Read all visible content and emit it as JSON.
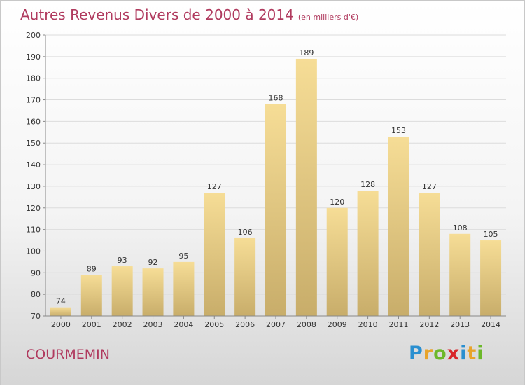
{
  "header": {
    "title": "Autres Revenus Divers de 2000 à 2014",
    "unit": "(en milliers d'€)"
  },
  "commune": "COURMEMIN",
  "logo": {
    "letters": [
      "P",
      "r",
      "o",
      "x",
      "i",
      "t",
      "i"
    ],
    "colors": [
      "#2a8fd0",
      "#e8a42a",
      "#6cb82a",
      "#d8262a",
      "#2a8fd0",
      "#e8a42a",
      "#6cb82a"
    ]
  },
  "chart_data": {
    "type": "bar",
    "title": "Autres Revenus Divers de 2000 à 2014",
    "subtitle": "(en milliers d'€)",
    "categories": [
      "2000",
      "2001",
      "2002",
      "2003",
      "2004",
      "2005",
      "2006",
      "2007",
      "2008",
      "2009",
      "2010",
      "2011",
      "2012",
      "2013",
      "2014"
    ],
    "values": [
      74,
      89,
      93,
      92,
      95,
      127,
      106,
      168,
      189,
      120,
      128,
      153,
      127,
      108,
      105
    ],
    "ylim": [
      70,
      200
    ],
    "yticks": [
      70,
      80,
      90,
      100,
      110,
      120,
      130,
      140,
      150,
      160,
      170,
      180,
      190,
      200
    ],
    "grid": true,
    "bar_color_top": "#f6dd96",
    "bar_color_bottom": "#c8ad6a"
  }
}
